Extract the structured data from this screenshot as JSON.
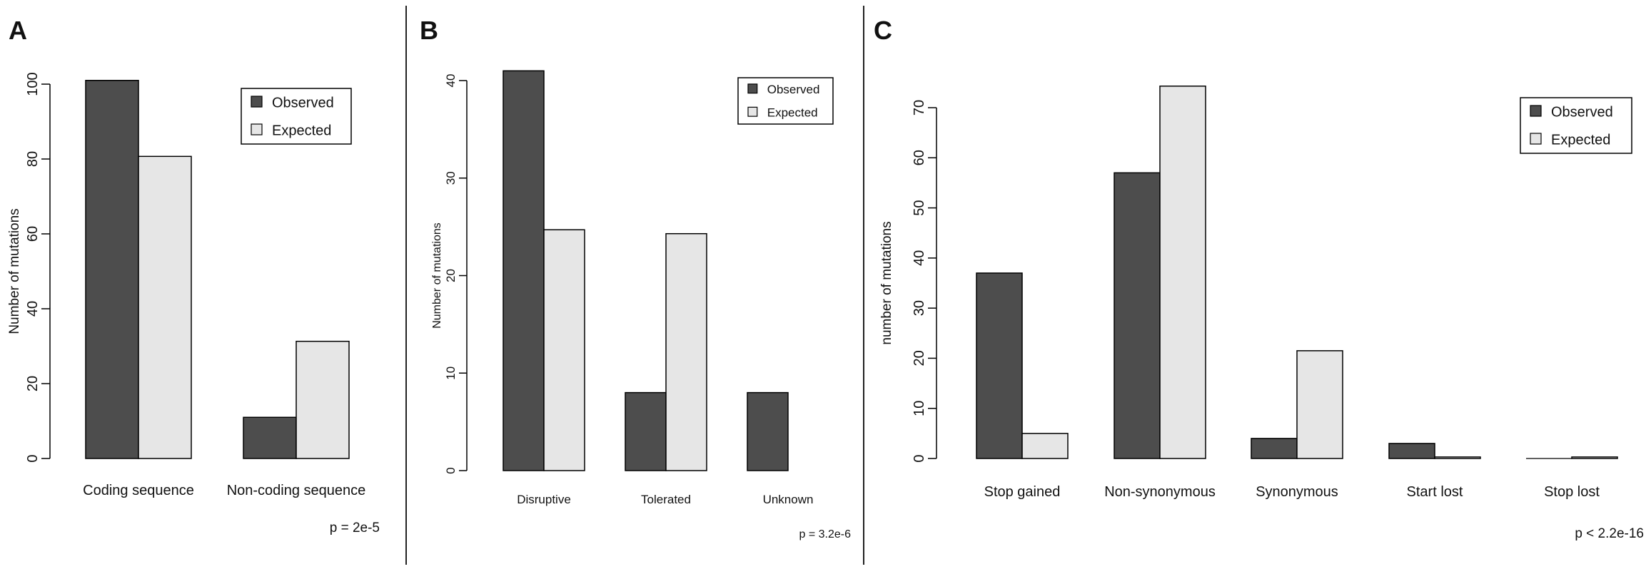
{
  "colors": {
    "observed": "#4d4d4d",
    "expected": "#e6e6e6",
    "stroke": "#000000"
  },
  "chart_data": [
    {
      "type": "bar",
      "panel_label": "A",
      "categories": [
        "Coding sequence",
        "Non-coding sequence"
      ],
      "series": [
        {
          "name": "Observed",
          "values": [
            101,
            11
          ]
        },
        {
          "name": "Expected",
          "values": [
            80.7,
            31.3
          ]
        }
      ],
      "ylabel": "Number of mutations",
      "ylim": [
        0,
        100
      ],
      "yticks": [
        0,
        20,
        40,
        60,
        80,
        100
      ],
      "legend": "top-right",
      "annotation": "p = 2e-5"
    },
    {
      "type": "bar",
      "panel_label": "B",
      "categories": [
        "Disruptive",
        "Tolerated",
        "Unknown"
      ],
      "series": [
        {
          "name": "Observed",
          "values": [
            41,
            8,
            8
          ]
        },
        {
          "name": "Expected",
          "values": [
            24.7,
            24.3,
            0
          ]
        }
      ],
      "ylabel": "Number of mutations",
      "ylim": [
        0,
        40
      ],
      "yticks": [
        0,
        10,
        20,
        30,
        40
      ],
      "legend": "top-right",
      "annotation": "p = 3.2e-6"
    },
    {
      "type": "bar",
      "panel_label": "C",
      "categories": [
        "Stop gained",
        "Non-synonymous",
        "Synonymous",
        "Start lost",
        "Stop lost"
      ],
      "series": [
        {
          "name": "Observed",
          "values": [
            37,
            57,
            4,
            3,
            0
          ]
        },
        {
          "name": "Expected",
          "values": [
            5,
            74.3,
            21.5,
            0.3,
            0.3
          ]
        }
      ],
      "ylabel": "number of mutations",
      "ylim": [
        0,
        70
      ],
      "yticks": [
        0,
        10,
        20,
        30,
        40,
        50,
        60,
        70
      ],
      "legend": "top-right",
      "annotation": "p < 2.2e-16"
    }
  ]
}
